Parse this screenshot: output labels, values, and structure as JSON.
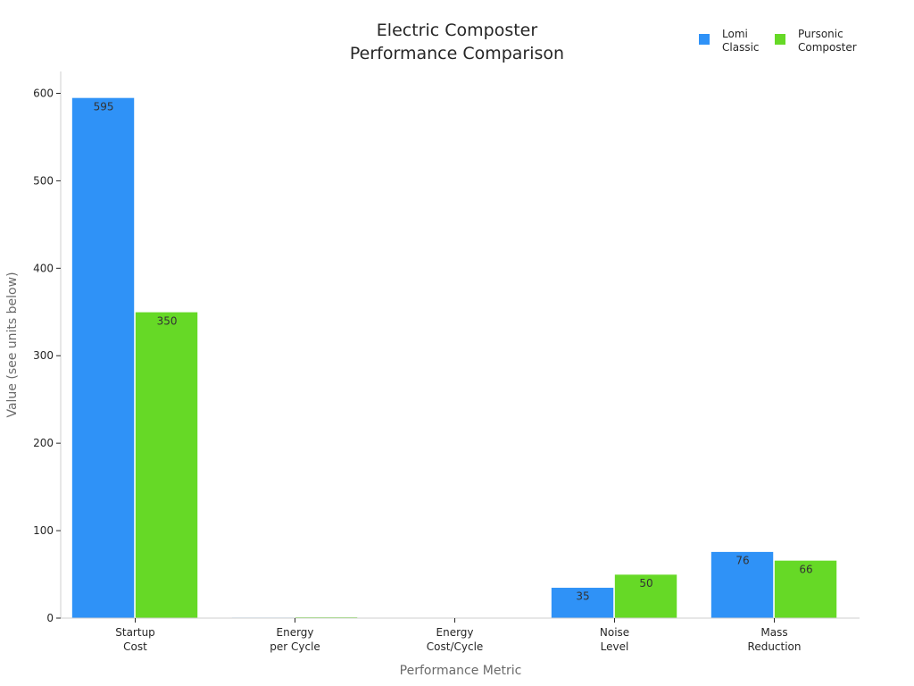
{
  "chart_data": {
    "type": "bar",
    "title_lines": [
      "Electric Composter",
      "Performance Comparison"
    ],
    "xlabel": "Performance Metric",
    "ylabel": "Value (see units below)",
    "categories": [
      [
        "Startup",
        "Cost"
      ],
      [
        "Energy",
        "per Cycle"
      ],
      [
        "Energy",
        "Cost/Cycle"
      ],
      [
        "Noise",
        "Level"
      ],
      [
        "Mass",
        "Reduction"
      ]
    ],
    "series": [
      {
        "name_lines": [
          "Lomi",
          "Classic"
        ],
        "color": "#2f92f7",
        "values": [
          595,
          0.9,
          0.15,
          35,
          76
        ],
        "labels": [
          "595",
          "",
          "",
          "35",
          "76"
        ]
      },
      {
        "name_lines": [
          "Pursonic",
          "Composter"
        ],
        "color": "#66d926",
        "values": [
          350,
          1.2,
          0.2,
          50,
          66
        ],
        "labels": [
          "350",
          "",
          "",
          "50",
          "66"
        ]
      }
    ],
    "ylim": [
      0,
      625
    ],
    "yticks": [
      0,
      100,
      200,
      300,
      400,
      500,
      600
    ],
    "grid": false,
    "legend_position": "top-right"
  }
}
